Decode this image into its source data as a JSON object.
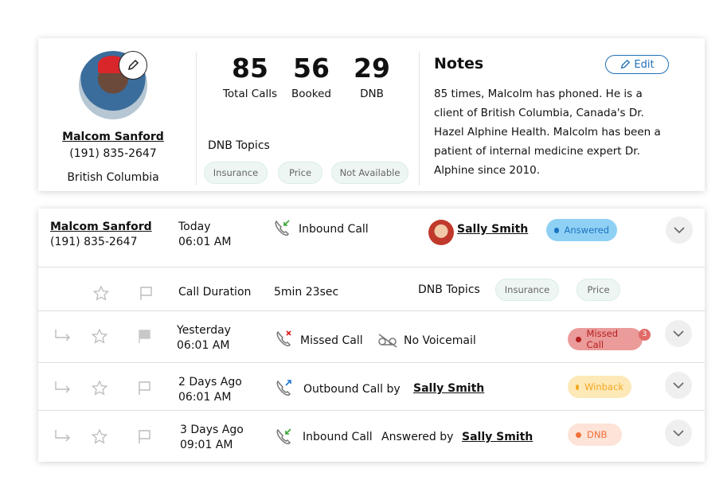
{
  "profile": {
    "name": "Malcom Sanford",
    "phone": "(191) 835-2647",
    "region": "British Columbia"
  },
  "stats": [
    {
      "value": "85",
      "label": "Total Calls"
    },
    {
      "value": "56",
      "label": "Booked"
    },
    {
      "value": "29",
      "label": "DNB"
    }
  ],
  "dnb_topics": {
    "label": "DNB Topics",
    "chips": [
      "Insurance",
      "Price",
      "Not Available"
    ]
  },
  "notes": {
    "title": "Notes",
    "edit_label": "Edit",
    "lines": [
      "85 times, Malcolm has phoned. He is a",
      "client of British Columbia, Canada's Dr.",
      "Hazel Alphine Health. Malcolm has been a",
      "patient of internal medicine expert Dr.",
      "Alphine since 2010."
    ]
  },
  "calls": {
    "row1": {
      "name": "Malcom Sanford",
      "phone": "(191) 835-2647",
      "day": "Today",
      "time": "06:01 AM",
      "type": "Inbound Call",
      "agent": "Sally Smith",
      "status": "Answered"
    },
    "detail": {
      "duration_label": "Call Duration",
      "duration": "5min 23sec",
      "topics_label": "DNB Topics",
      "chips": [
        "Insurance",
        "Price"
      ]
    },
    "row2": {
      "day": "Yesterday",
      "time": "06:01 AM",
      "type": "Missed Call",
      "voicemail": "No Voicemail",
      "status": "Missed Call",
      "count": "3"
    },
    "row3": {
      "day": "2 Days Ago",
      "time": "06:01 AM",
      "type": "Outbound Call by",
      "agent": "Sally Smith",
      "status": "Winback"
    },
    "row4": {
      "day": "3 Days Ago",
      "time": "09:01 AM",
      "type": "Inbound Call",
      "answered_by": "Answered by",
      "agent": "Sally Smith",
      "status": "DNB"
    }
  },
  "colors": {
    "answered_bg": "#8fd0f5",
    "answered_fg": "#1a73c0",
    "missed_bg": "#eb9b99",
    "missed_fg": "#b42020",
    "winback_bg": "#fde8b8",
    "winback_fg": "#f2a81d",
    "dnb_bg": "#fde3d8",
    "dnb_fg": "#f0703a"
  }
}
